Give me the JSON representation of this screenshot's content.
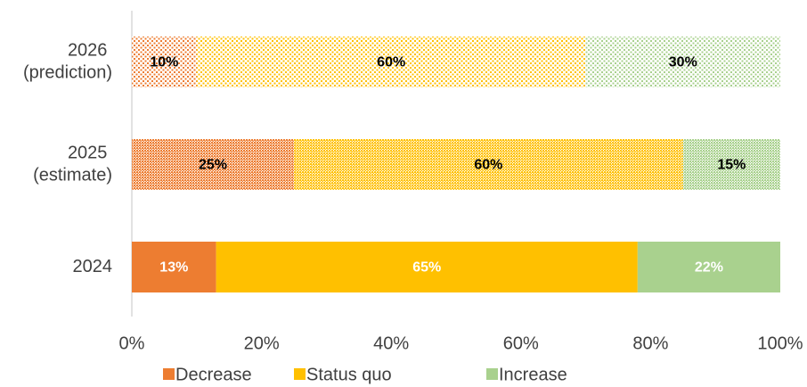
{
  "chart_data": {
    "type": "stacked-bar-horizontal",
    "categories": [
      "2026 (prediction)",
      "2025 (estimate)",
      "2024"
    ],
    "series": [
      {
        "name": "Decrease",
        "color": "#ed7d31",
        "values": [
          10,
          25,
          13
        ],
        "value_labels": [
          "10%",
          "25%",
          "13%"
        ]
      },
      {
        "name": "Status quo",
        "color": "#ffc000",
        "values": [
          60,
          60,
          65
        ],
        "value_labels": [
          "60%",
          "60%",
          "65%"
        ]
      },
      {
        "name": "Increase",
        "color": "#a9d18e",
        "values": [
          30,
          15,
          22
        ],
        "value_labels": [
          "30%",
          "15%",
          "22%"
        ]
      }
    ],
    "bar_styles": [
      "light-pattern",
      "dense-pattern",
      "solid"
    ],
    "label_colors": [
      "#000000",
      "#000000",
      "#ffffff"
    ],
    "xlim": [
      0,
      100
    ],
    "xticks": [
      {
        "value": 0,
        "label": "0%"
      },
      {
        "value": 20,
        "label": "20%"
      },
      {
        "value": 40,
        "label": "40%"
      },
      {
        "value": 60,
        "label": "60%"
      },
      {
        "value": 80,
        "label": "80%"
      },
      {
        "value": 100,
        "label": "100%"
      }
    ],
    "legend": "bottom"
  }
}
